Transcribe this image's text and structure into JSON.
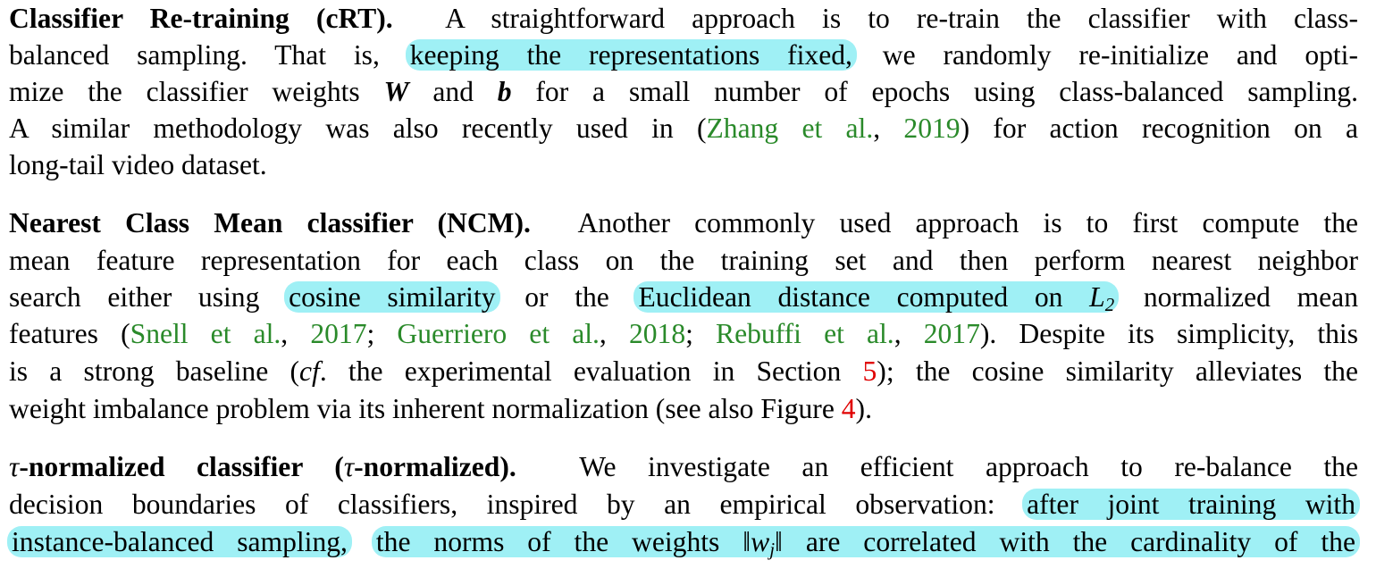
{
  "para1": {
    "heading": "Classifier Re-training (cRT).",
    "l1": "A straightforward approach is to re-train the classifier with class-",
    "l2a": "balanced sampling. That is,",
    "l2hl": "keeping the representations fixed,",
    "l2b": "we randomly re-initialize and opti-",
    "l3a": "mize the classifier weights",
    "l3W": "W",
    "l3b": "and",
    "l3bb": "b",
    "l3c": "for a small number of epochs using class-balanced sampling.",
    "l4a": "A similar methodology was also recently used in (",
    "l4cite_author": "Zhang et al.",
    "l4comma": ",",
    "l4cite_year": "2019",
    "l4b": ") for action recognition on a",
    "l5": "long-tail video dataset."
  },
  "para2": {
    "heading": "Nearest Class Mean classifier (NCM).",
    "l1": "Another commonly used approach is to first compute the",
    "l2": "mean feature representation for each class on the training set and then perform nearest neighbor",
    "l3a": "search either using",
    "l3hl1": "cosine similarity",
    "l3b": "or the",
    "l3hl2": "Euclidean distance computed on",
    "l3L": "L",
    "l3sub": "2",
    "l3c": "normalized mean",
    "l4a": "features (",
    "c1a": "Snell et al.",
    "c1y": "2017",
    "c2a": "Guerriero et al.",
    "c2y": "2018",
    "c3a": "Rebuffi et al.",
    "c3y": "2017",
    "l4b": "). Despite its simplicity, this",
    "l5a": "is a strong baseline (",
    "l5cf": "cf",
    "l5b": ". the experimental evaluation in Section",
    "l5ref": "5",
    "l5c": "); the cosine similarity alleviates the",
    "l6a": "weight imbalance problem via its inherent normalization (see also Figure",
    "l6ref": "4",
    "l6b": ")."
  },
  "para3": {
    "tau": "τ",
    "heading_a": "-normalized classifier (",
    "heading_tau": "τ",
    "heading_b": "-normalized).",
    "l1": "We investigate an efficient approach to re-balance the",
    "l2a": "decision boundaries of classifiers, inspired by an empirical observation:",
    "l2hl": "after joint training with",
    "l3hl1": "instance-balanced sampling,",
    "l3hl2a": "the norms of the weights",
    "l3norm": "‖w",
    "l3sub": "j",
    "l3norm2": "‖",
    "l3hl2b": "are correlated with the cardinality of the"
  }
}
